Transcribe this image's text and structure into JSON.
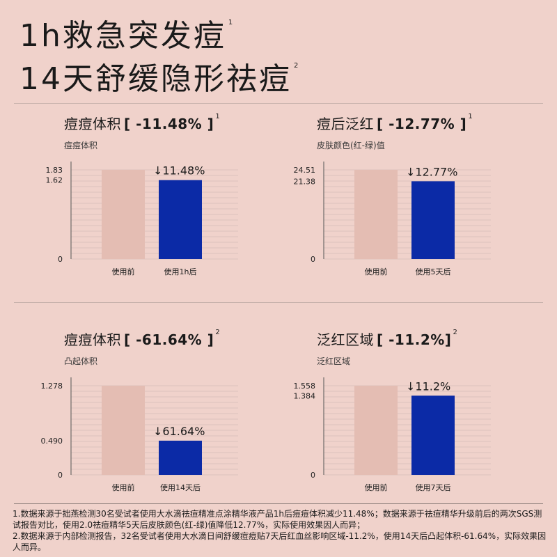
{
  "headline": {
    "line1": "1h救急突发痘",
    "line1_note": "1",
    "line2": "14天舒缓隐形祛痘",
    "line2_note": "2"
  },
  "colors": {
    "background": "#f0d2cb",
    "before_bar": "#e4bdb3",
    "after_bar": "#0b2aa6",
    "grid": "#a89894"
  },
  "panels": [
    {
      "title": "痘痘体积",
      "metric": "[ -11.48% ]",
      "note": "1",
      "subtitle": "痘痘体积",
      "change_label": "↓11.48%"
    },
    {
      "title": "痘后泛红",
      "metric": "[ -12.77% ]",
      "note": "1",
      "subtitle": "皮肤颜色(红-绿)值",
      "change_label": "↓12.77%"
    },
    {
      "title": "痘痘体积",
      "metric": "[ -61.64% ]",
      "note": "2",
      "subtitle": "凸起体积",
      "change_label": "↓61.64%"
    },
    {
      "title": "泛红区域",
      "metric": "[ -11.2%]",
      "note": "2",
      "subtitle": "泛红区域",
      "change_label": "↓11.2%"
    }
  ],
  "chart_data": [
    {
      "type": "bar",
      "categories": [
        "使用前",
        "使用1h后"
      ],
      "values": [
        1.83,
        1.62
      ],
      "yticks": [
        "0",
        "1.62",
        "1.83"
      ],
      "ylim": [
        0,
        1.83
      ]
    },
    {
      "type": "bar",
      "categories": [
        "使用前",
        "使用5天后"
      ],
      "values": [
        24.51,
        21.38
      ],
      "yticks": [
        "0",
        "21.38",
        "24.51"
      ],
      "ylim": [
        0,
        24.51
      ]
    },
    {
      "type": "bar",
      "categories": [
        "使用前",
        "使用14天后"
      ],
      "values": [
        1.278,
        0.49
      ],
      "yticks": [
        "0",
        "0.490",
        "1.278"
      ],
      "ylim": [
        0,
        1.278
      ]
    },
    {
      "type": "bar",
      "categories": [
        "使用前",
        "使用7天后"
      ],
      "values": [
        1.558,
        1.384
      ],
      "yticks": [
        "0",
        "1.384",
        "1.558"
      ],
      "ylim": [
        0,
        1.558
      ]
    }
  ],
  "footnotes": [
    "1.数据来源于拙燕检测30名受试者使用大水滴祛痘精准点涂精华液产品1h后痘痘体积减少11.48%；数据来源于祛痘精华升级前后的两次SGS测试报告对比，使用2.0祛痘精华5天后皮肤颜色(红-绿)值降低12.77%，实际使用效果因人而异；",
    "2.数据来源于内部检测报告，32名受试者使用大水滴日间舒缓痘痘贴7天后红血丝影响区域-11.2%，使用14天后凸起体积-61.64%，实际效果因人而异。"
  ]
}
